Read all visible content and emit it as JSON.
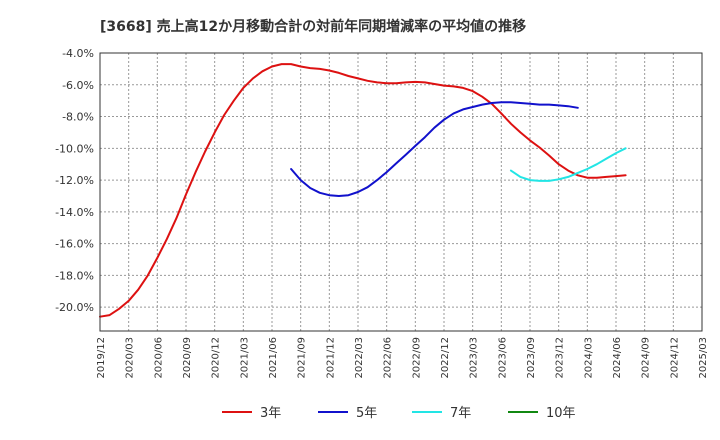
{
  "chart_data": {
    "type": "line",
    "title": "[3668]  売上高12か月移動合計の対前年同期増減率の平均値の推移",
    "xlabel": "",
    "ylabel": "",
    "ylim": [
      -21.5,
      -4.0
    ],
    "y_ticks": [
      -4,
      -6,
      -8,
      -10,
      -12,
      -14,
      -16,
      -18,
      -20
    ],
    "y_tick_labels": [
      "-4.0%",
      "-6.0%",
      "-8.0%",
      "-10.0%",
      "-12.0%",
      "-14.0%",
      "-16.0%",
      "-18.0%",
      "-20.0%"
    ],
    "x_tick_labels": [
      "2019/12",
      "2020/03",
      "2020/06",
      "2020/09",
      "2020/12",
      "2021/03",
      "2021/06",
      "2021/09",
      "2021/12",
      "2022/03",
      "2022/06",
      "2022/09",
      "2022/12",
      "2023/03",
      "2023/06",
      "2023/09",
      "2023/12",
      "2024/03",
      "2024/06",
      "2024/09",
      "2024/12",
      "2025/03"
    ],
    "grid": true,
    "legend_position": "bottom",
    "series": [
      {
        "name": "3年",
        "color": "#dd1111",
        "start_index": 0,
        "values": [
          -20.6,
          -20.5,
          -20.1,
          -19.6,
          -18.9,
          -18.0,
          -16.9,
          -15.7,
          -14.4,
          -12.9,
          -11.5,
          -10.2,
          -9.0,
          -7.9,
          -7.0,
          -6.2,
          -5.6,
          -5.15,
          -4.85,
          -4.7,
          -4.7,
          -4.85,
          -4.95,
          -5.0,
          -5.1,
          -5.25,
          -5.45,
          -5.6,
          -5.75,
          -5.85,
          -5.9,
          -5.9,
          -5.85,
          -5.82,
          -5.85,
          -5.95,
          -6.05,
          -6.1,
          -6.2,
          -6.4,
          -6.75,
          -7.2,
          -7.8,
          -8.45,
          -9.0,
          -9.5,
          -9.95,
          -10.45,
          -11.0,
          -11.4,
          -11.7,
          -11.85,
          -11.85,
          -11.8,
          -11.75,
          -11.7
        ]
      },
      {
        "name": "5年",
        "color": "#1111cc",
        "start_index": 20,
        "values": [
          -11.3,
          -12.0,
          -12.5,
          -12.8,
          -12.95,
          -13.0,
          -12.95,
          -12.75,
          -12.45,
          -12.0,
          -11.5,
          -10.95,
          -10.4,
          -9.85,
          -9.3,
          -8.7,
          -8.2,
          -7.8,
          -7.55,
          -7.4,
          -7.25,
          -7.15,
          -7.1,
          -7.1,
          -7.15,
          -7.2,
          -7.25,
          -7.25,
          -7.3,
          -7.35,
          -7.45
        ]
      },
      {
        "name": "7年",
        "color": "#22e5e5",
        "start_index": 43,
        "values": [
          -11.4,
          -11.8,
          -12.0,
          -12.05,
          -12.05,
          -11.95,
          -11.8,
          -11.55,
          -11.3,
          -11.0,
          -10.65,
          -10.3,
          -10.0
        ]
      },
      {
        "name": "10年",
        "color": "#118811",
        "start_index": 0,
        "values": []
      }
    ]
  }
}
